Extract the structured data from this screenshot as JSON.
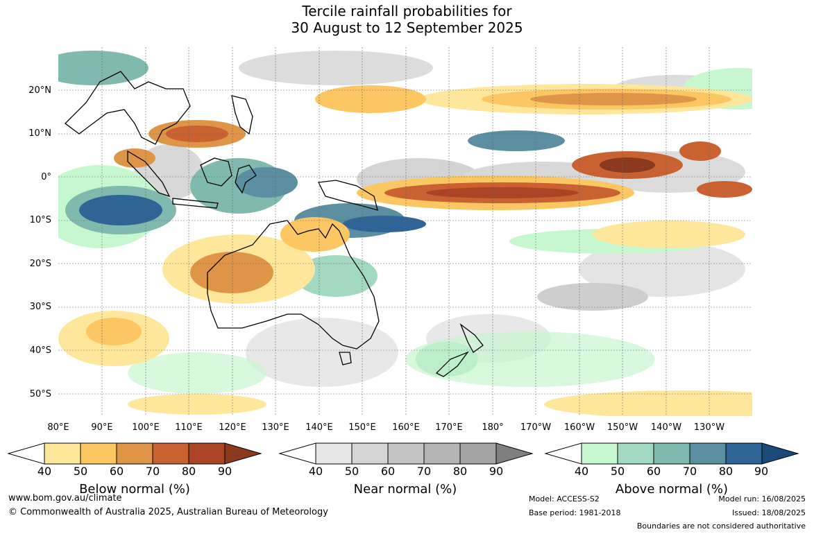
{
  "title": {
    "line1": "Tercile rainfall probabilities for",
    "line2": "30 August to 12 September 2025"
  },
  "map": {
    "lat_labels": [
      "20°N",
      "10°N",
      "0°",
      "10°S",
      "20°S",
      "30°S",
      "40°S",
      "50°S"
    ],
    "lon_labels": [
      "80°E",
      "90°E",
      "100°E",
      "110°E",
      "120°E",
      "130°E",
      "140°E",
      "150°E",
      "160°E",
      "170°E",
      "180°",
      "170°W",
      "160°W",
      "150°W",
      "140°W",
      "130°W"
    ]
  },
  "legends": [
    {
      "title": "Below normal (%)",
      "ticks": [
        "40",
        "50",
        "60",
        "70",
        "80",
        "90"
      ],
      "colors": [
        "#ffffff",
        "#fee79a",
        "#fcc662",
        "#de9547",
        "#c96131",
        "#ab4424",
        "#8b3a1e"
      ]
    },
    {
      "title": "Near normal (%)",
      "ticks": [
        "40",
        "50",
        "60",
        "70",
        "80",
        "90"
      ],
      "colors": [
        "#ffffff",
        "#e6e6e6",
        "#d4d4d4",
        "#c4c4c4",
        "#b4b4b4",
        "#a3a3a3",
        "#7f7f7f"
      ]
    },
    {
      "title": "Above normal (%)",
      "ticks": [
        "40",
        "50",
        "60",
        "70",
        "80",
        "90"
      ],
      "colors": [
        "#ffffff",
        "#c7f7cf",
        "#a3d9c0",
        "#80b9ad",
        "#5b8ea0",
        "#2f6496",
        "#1a4a7a"
      ]
    }
  ],
  "footer": {
    "website": "www.bom.gov.au/climate",
    "copyright": "© Commonwealth of Australia 2025, Australian Bureau of Meteorology",
    "model": "Model: ACCESS-S2",
    "base_period": "Base period: 1981-2018",
    "model_run": "Model run: 16/08/2025",
    "issued": "Issued: 18/08/2025",
    "disclaimer": "Boundaries are not considered authoritative"
  }
}
